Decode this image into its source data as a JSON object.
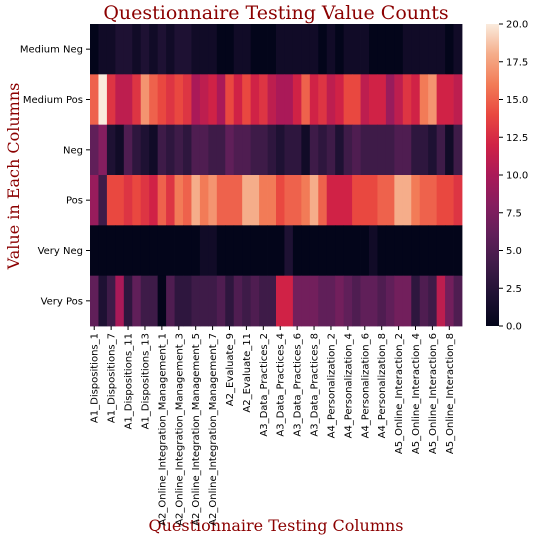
{
  "chart_data": {
    "type": "heatmap",
    "title": "Questionnaire Testing Value Counts",
    "xlabel": "Questionnaire Testing Columns",
    "ylabel": "Value in Each Columns",
    "rows": [
      "Medium Neg",
      "Medium Pos",
      "Neg",
      "Pos",
      "Very Neg",
      "Very Pos"
    ],
    "x_tick_labels": [
      "A1_Dispositions_1",
      "A1_Dispositions_7",
      "A1_Dispositions_11",
      "A1_Dispositions_13",
      "A2_Online_Integration_Management_1",
      "A2_Online_Integration_Management_3",
      "A2_Online_Integration_Management_5",
      "A2_Online_Integration_Management_7",
      "A2_Evaluate_9",
      "A2_Evaluate_11",
      "A3_Data_Practices_2",
      "A3_Data_Practices_4",
      "A3_Data_Practices_6",
      "A3_Data_Practices_8",
      "A4_Personalization_2",
      "A4_Personalization_4",
      "A4_Personalization_6",
      "A4_Personalization_8",
      "A5_Online_Interaction_2",
      "A5_Online_Interaction_4",
      "A5_Online_Interaction_6",
      "A5_Online_Interaction_8"
    ],
    "n_columns": 44,
    "values": [
      [
        0,
        1,
        1,
        2,
        2,
        1,
        2,
        1,
        2,
        1,
        2,
        2,
        1,
        1,
        1,
        0,
        0,
        1,
        1,
        0,
        0,
        0,
        1,
        1,
        1,
        1,
        1,
        0,
        1,
        0,
        1,
        1,
        1,
        0,
        0,
        0,
        0,
        1,
        1,
        1,
        1,
        1,
        0,
        1
      ],
      [
        15,
        20,
        13,
        11,
        11,
        13,
        17,
        15,
        14,
        13,
        14,
        13,
        10,
        11,
        12,
        10,
        14,
        12,
        14,
        12,
        13,
        11,
        10,
        10,
        12,
        15,
        12,
        13,
        11,
        12,
        14,
        14,
        11,
        12,
        12,
        9,
        11,
        13,
        12,
        16,
        17,
        12,
        12,
        11
      ],
      [
        6,
        8,
        2,
        1,
        5,
        3,
        2,
        1,
        4,
        3,
        4,
        3,
        5,
        5,
        4,
        4,
        6,
        5,
        5,
        4,
        4,
        3,
        2,
        3,
        3,
        1,
        4,
        3,
        4,
        2,
        4,
        5,
        4,
        4,
        4,
        4,
        5,
        5,
        3,
        3,
        2,
        4,
        1,
        4
      ],
      [
        9,
        4,
        14,
        14,
        13,
        14,
        13,
        12,
        15,
        13,
        16,
        15,
        18,
        16,
        17,
        15,
        15,
        15,
        18,
        18,
        16,
        16,
        14,
        15,
        15,
        16,
        18,
        15,
        12,
        12,
        12,
        14,
        14,
        14,
        15,
        15,
        18,
        18,
        16,
        15,
        15,
        14,
        14,
        13
      ],
      [
        0,
        0,
        0,
        0,
        0,
        0,
        0,
        0,
        0,
        0,
        0,
        0,
        0,
        1,
        1,
        0,
        0,
        0,
        0,
        0,
        0,
        0,
        0,
        2,
        0,
        0,
        0,
        0,
        0,
        0,
        0,
        0,
        0,
        1,
        0,
        0,
        0,
        0,
        0,
        0,
        0,
        0,
        0,
        0
      ],
      [
        6,
        2,
        4,
        10,
        3,
        6,
        4,
        4,
        0,
        5,
        3,
        3,
        4,
        4,
        4,
        5,
        3,
        5,
        4,
        5,
        4,
        4,
        12,
        12,
        7,
        7,
        7,
        6,
        6,
        7,
        6,
        5,
        6,
        6,
        5,
        6,
        7,
        7,
        3,
        5,
        4,
        11,
        7,
        5
      ]
    ],
    "colorbar": {
      "min": 0,
      "max": 20,
      "ticks": [
        "0.0",
        "2.5",
        "5.0",
        "7.5",
        "10.0",
        "12.5",
        "15.0",
        "17.5",
        "20.0"
      ]
    },
    "colormap": "rocket"
  }
}
